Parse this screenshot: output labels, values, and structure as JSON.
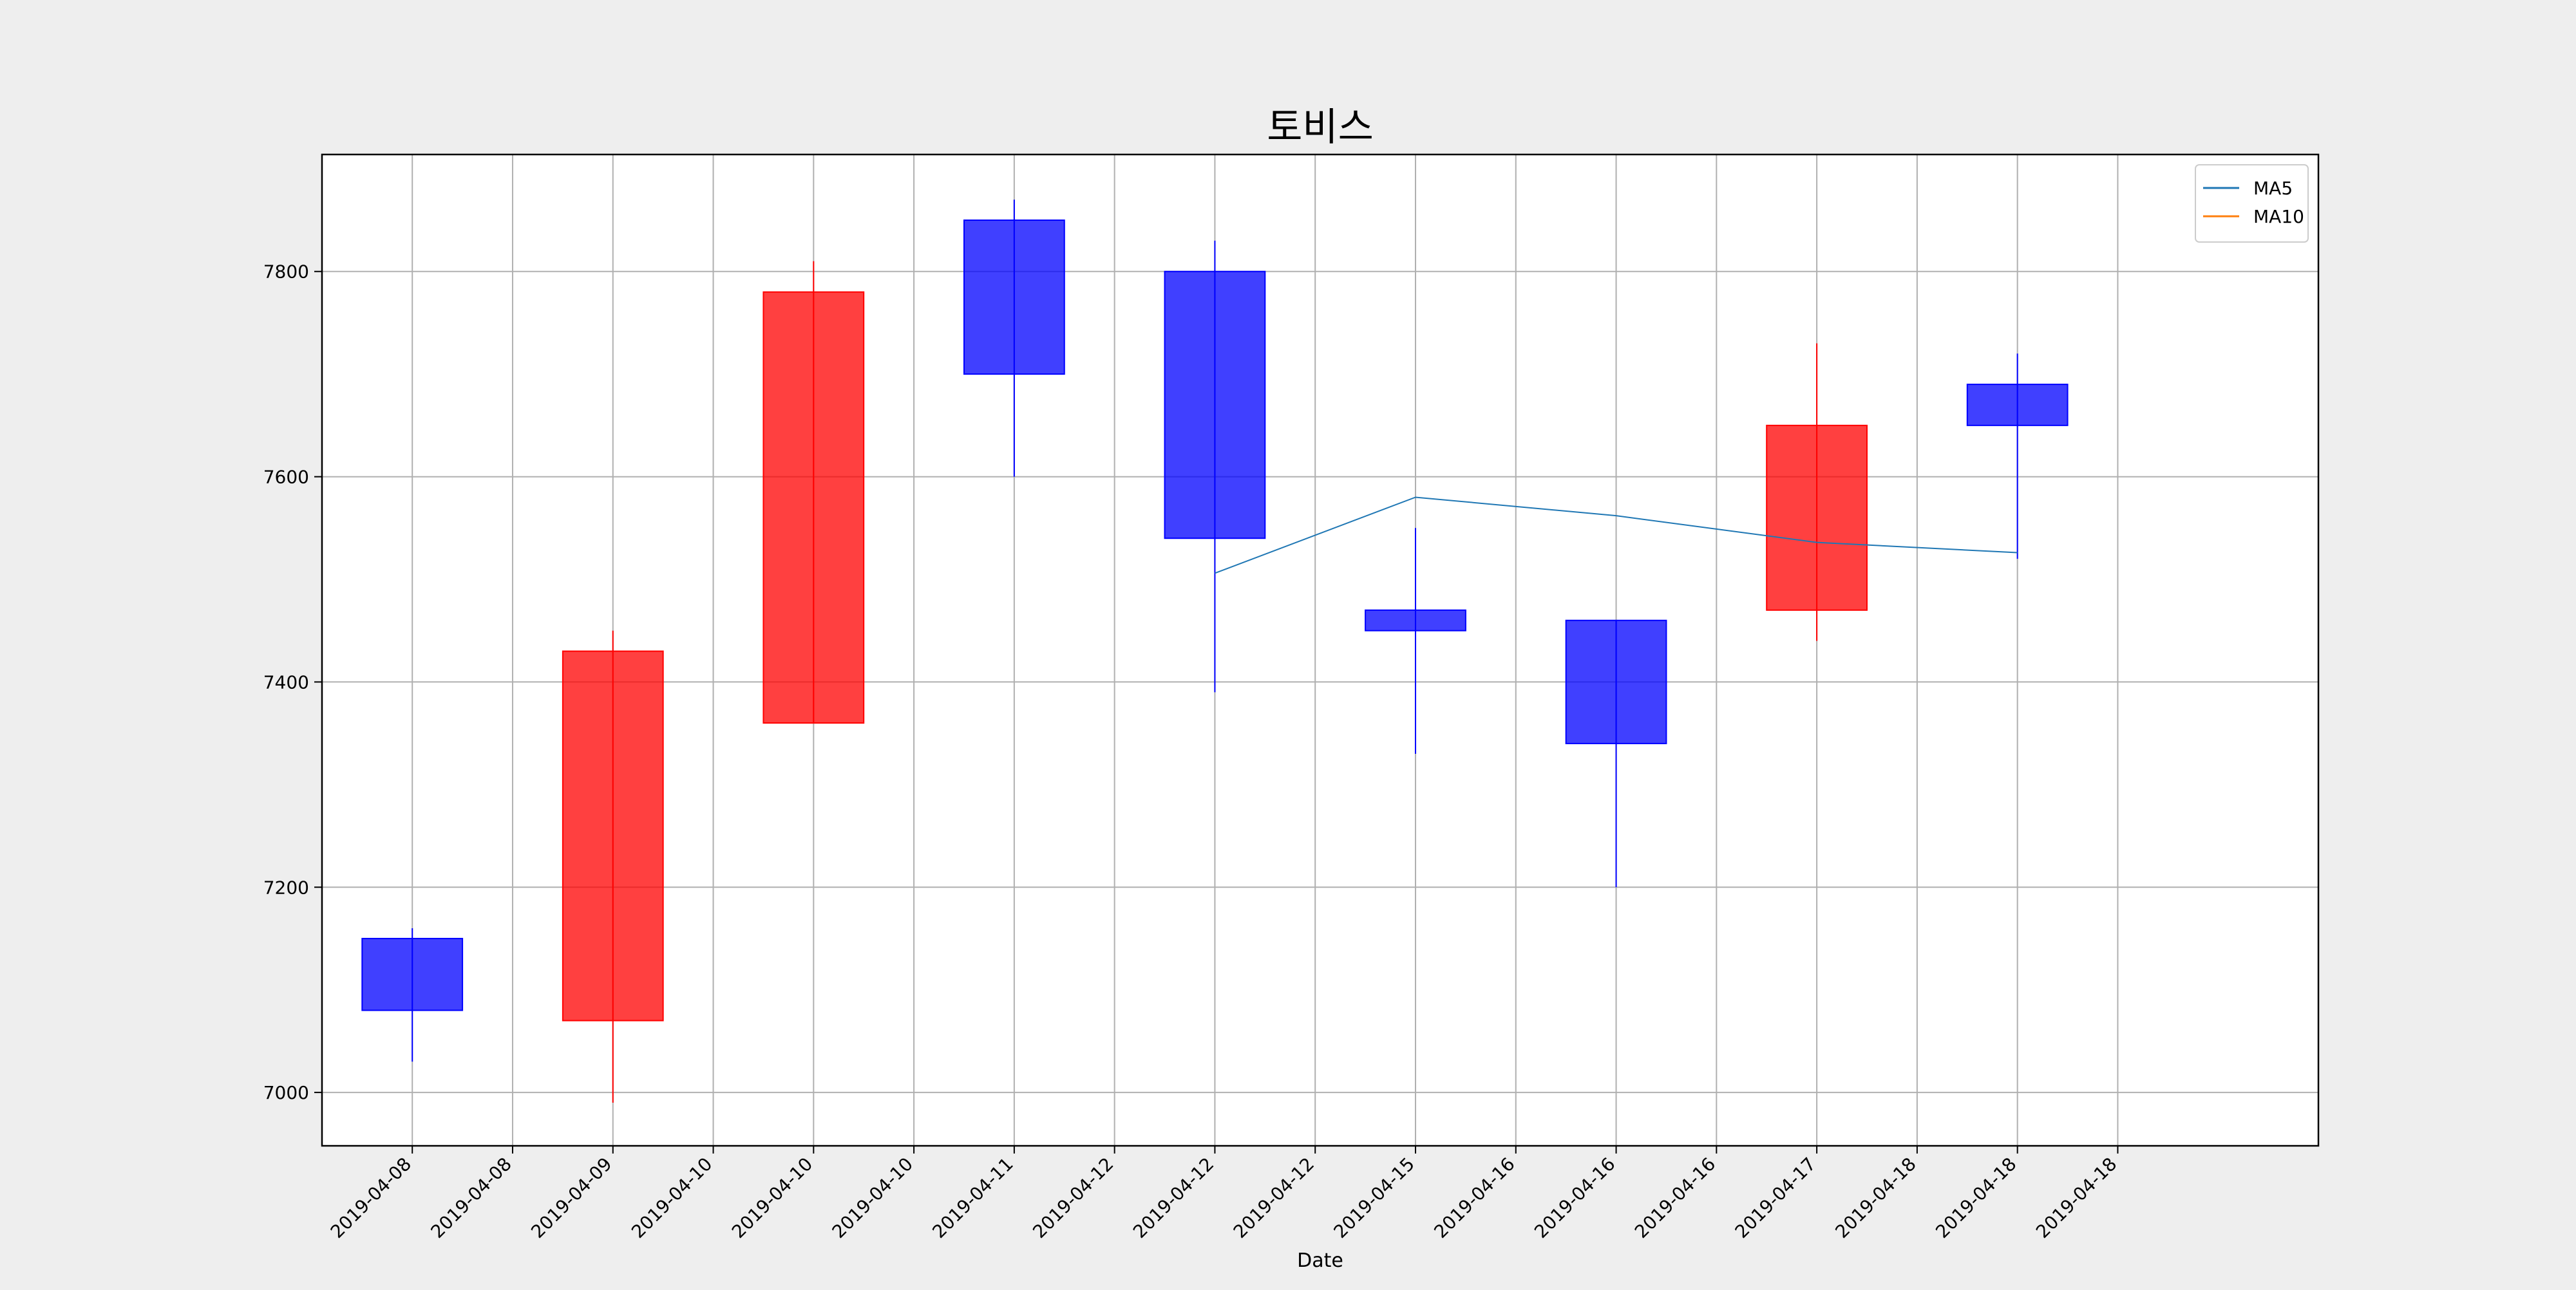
{
  "chart_data": {
    "type": "candlestick",
    "title": "토비스",
    "xlabel": "Date",
    "ylabel": "",
    "ylim": [
      6948,
      7914
    ],
    "yticks": [
      7000,
      7200,
      7400,
      7600,
      7800
    ],
    "xlim": [
      -0.9,
      19
    ],
    "grid": true,
    "legend_position": "top-right",
    "up_color": "#ff0000",
    "down_color": "#0000ff",
    "x_tick_labels": [
      "2019-04-08",
      "2019-04-08",
      "2019-04-09",
      "2019-04-10",
      "2019-04-10",
      "2019-04-10",
      "2019-04-11",
      "2019-04-12",
      "2019-04-12",
      "2019-04-12",
      "2019-04-15",
      "2019-04-16",
      "2019-04-16",
      "2019-04-16",
      "2019-04-17",
      "2019-04-18",
      "2019-04-18",
      "2019-04-18"
    ],
    "candles": [
      {
        "date": "2019-04-08",
        "open": 7150,
        "high": 7160,
        "low": 7030,
        "close": 7080
      },
      {
        "date": "2019-04-09",
        "open": 7070,
        "high": 7450,
        "low": 6990,
        "close": 7430
      },
      {
        "date": "2019-04-10",
        "open": 7360,
        "high": 7810,
        "low": 7360,
        "close": 7780
      },
      {
        "date": "2019-04-11",
        "open": 7850,
        "high": 7870,
        "low": 7600,
        "close": 7700
      },
      {
        "date": "2019-04-12",
        "open": 7800,
        "high": 7830,
        "low": 7390,
        "close": 7540
      },
      {
        "date": "2019-04-15",
        "open": 7470,
        "high": 7550,
        "low": 7330,
        "close": 7450
      },
      {
        "date": "2019-04-16",
        "open": 7460,
        "high": 7460,
        "low": 7200,
        "close": 7340
      },
      {
        "date": "2019-04-17",
        "open": 7470,
        "high": 7730,
        "low": 7440,
        "close": 7650
      },
      {
        "date": "2019-04-18",
        "open": 7690,
        "high": 7720,
        "low": 7520,
        "close": 7650
      }
    ],
    "series": [
      {
        "name": "MA5",
        "color": "#1f77b4",
        "points": [
          {
            "date": "2019-04-12",
            "value": 7506
          },
          {
            "date": "2019-04-15",
            "value": 7580
          },
          {
            "date": "2019-04-16",
            "value": 7562
          },
          {
            "date": "2019-04-17",
            "value": 7536
          },
          {
            "date": "2019-04-18",
            "value": 7526
          }
        ]
      },
      {
        "name": "MA10",
        "color": "#ff7f0e",
        "points": []
      }
    ]
  }
}
